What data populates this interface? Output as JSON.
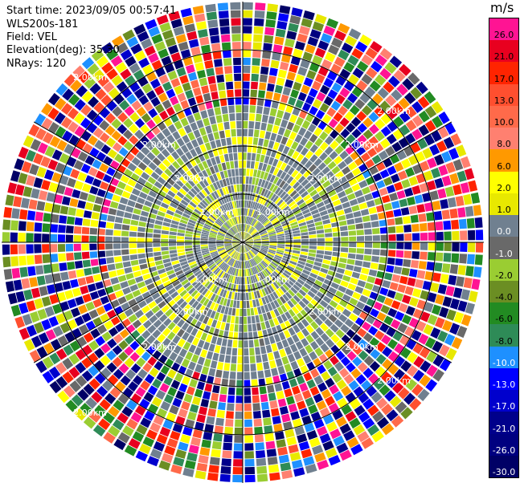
{
  "header": {
    "start_time": "Start time: 2023/09/05 00:57:41",
    "station": "WLS200s-181",
    "field": "Field: VEL",
    "elevation": "Elevation(deg): 35.30",
    "nrays": "NRays: 120"
  },
  "range_rings": [
    {
      "label": "1.00km"
    },
    {
      "label": "1.00km"
    },
    {
      "label": "1.00km"
    },
    {
      "label": "1.00km"
    },
    {
      "label": "2.00km"
    },
    {
      "label": "2.00km"
    },
    {
      "label": "2.00km"
    },
    {
      "label": "2.00km"
    },
    {
      "label": "2.00km"
    },
    {
      "label": "2.00km"
    },
    {
      "label": "2.00km"
    },
    {
      "label": "2.00km"
    },
    {
      "label": "2.00km"
    },
    {
      "label": "2.00km"
    },
    {
      "label": "2.00km"
    },
    {
      "label": "2.00km"
    }
  ],
  "colorbar": {
    "unit": "m/s",
    "entries": [
      {
        "label": "26.0",
        "color": "#ff1493"
      },
      {
        "label": "21.0",
        "color": "#e8001f"
      },
      {
        "label": "17.0",
        "color": "#ff2400"
      },
      {
        "label": "13.0",
        "color": "#ff4f2f"
      },
      {
        "label": "10.0",
        "color": "#ff6a4a"
      },
      {
        "label": "8.0",
        "color": "#ff8070"
      },
      {
        "label": "6.0",
        "color": "#ff9900"
      },
      {
        "label": "2.0",
        "color": "#ffff00"
      },
      {
        "label": "1.0",
        "color": "#e8e800"
      },
      {
        "label": "0.0",
        "color": "#708090"
      },
      {
        "label": "-1.0",
        "color": "#696969"
      },
      {
        "label": "-2.0",
        "color": "#9acd32"
      },
      {
        "label": "-4.0",
        "color": "#6b8e23"
      },
      {
        "label": "-6.0",
        "color": "#228b22"
      },
      {
        "label": "-8.0",
        "color": "#2e8b57"
      },
      {
        "label": "-10.0",
        "color": "#1e90ff"
      },
      {
        "label": "-13.0",
        "color": "#0000ff"
      },
      {
        "label": "-17.0",
        "color": "#0000cd"
      },
      {
        "label": "-21.0",
        "color": "#00008b"
      },
      {
        "label": "-26.0",
        "color": "#000080"
      },
      {
        "label": "-30.0",
        "color": "#000066"
      }
    ]
  }
}
